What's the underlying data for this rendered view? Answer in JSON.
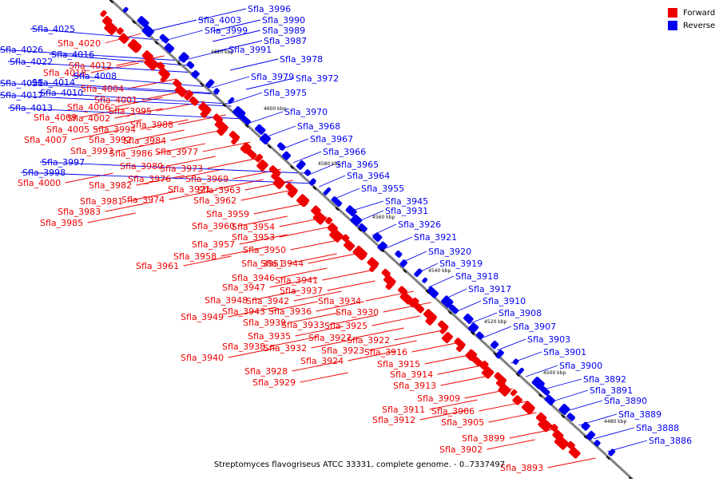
{
  "caption": "Streptomyces flavogriseus ATCC 33331, complete genome. - 0..7337497",
  "legend": [
    {
      "label": "Forward",
      "color": "#ee0000"
    },
    {
      "label": "Reverse",
      "color": "#0000ee"
    }
  ],
  "colors": {
    "forward": "#ee0000",
    "reverse": "#0000ee",
    "backbone": "#808080"
  },
  "scale_labels": [
    "4620 kbp",
    "4600 kbp",
    "4580 kbp",
    "4560 kbp",
    "4540 kbp",
    "4520 kbp",
    "4500 kbp",
    "4480 kbp"
  ],
  "forward_genes": [
    "Sfla_4020",
    "Sfla_4012",
    "Sfla_4018",
    "Sfla_4004",
    "Sfla_4001",
    "Sfla_4006",
    "Sfla_3995",
    "Sfla_4009",
    "Sfla_4002",
    "Sfla_4005",
    "Sfla_3994",
    "Sfla_3988",
    "Sfla_4007",
    "Sfla_3992",
    "Sfla_3984",
    "Sfla_3993",
    "Sfla_3986",
    "Sfla_3977",
    "Sfla_3980",
    "Sfla_3973",
    "Sfla_3976",
    "Sfla_3969",
    "Sfla_4000",
    "Sfla_3982",
    "Sfla_3971",
    "Sfla_3963",
    "Sfla_3981",
    "Sfla_3974",
    "Sfla_3962",
    "Sfla_3983",
    "Sfla_3959",
    "Sfla_3985",
    "Sfla_3960",
    "Sfla_3954",
    "Sfla_3953",
    "Sfla_3957",
    "Sfla_3950",
    "Sfla_3958",
    "Sfla_3951",
    "Sfla_3944",
    "Sfla_3961",
    "Sfla_3946",
    "Sfla_3941",
    "Sfla_3947",
    "Sfla_3937",
    "Sfla_3948",
    "Sfla_3942",
    "Sfla_3934",
    "Sfla_3943",
    "Sfla_3936",
    "Sfla_3930",
    "Sfla_3949",
    "Sfla_3939",
    "Sfla_3933",
    "Sfla_3925",
    "Sfla_3935",
    "Sfla_3927",
    "Sfla_3922",
    "Sfla_3938",
    "Sfla_3932",
    "Sfla_3923",
    "Sfla_3916",
    "Sfla_3940",
    "Sfla_3924",
    "Sfla_3915",
    "Sfla_3928",
    "Sfla_3914",
    "Sfla_3929",
    "Sfla_3913",
    "Sfla_3909",
    "Sfla_3911",
    "Sfla_3906",
    "Sfla_3912",
    "Sfla_3905",
    "Sfla_3899",
    "Sfla_3902",
    "Sfla_3893"
  ],
  "reverse_genes": [
    "Sfla_3996",
    "Sfla_4003",
    "Sfla_3990",
    "Sfla_3999",
    "Sfla_3989",
    "Sfla_4025",
    "Sfla_3987",
    "Sfla_4026",
    "Sfla_4016",
    "Sfla_3991",
    "Sfla_4022",
    "Sfla_3978",
    "Sfla_4008",
    "Sfla_3979",
    "Sfla_3972",
    "Sfla_4021",
    "Sfla_4014",
    "Sfla_4017",
    "Sfla_4010",
    "Sfla_3975",
    "Sfla_4013",
    "Sfla_3970",
    "Sfla_3968",
    "Sfla_3967",
    "Sfla_3966",
    "Sfla_3997",
    "Sfla_3965",
    "Sfla_3998",
    "Sfla_3964",
    "Sfla_3955",
    "Sfla_3945",
    "Sfla_3931",
    "Sfla_3926",
    "Sfla_3921",
    "Sfla_3920",
    "Sfla_3919",
    "Sfla_3918",
    "Sfla_3917",
    "Sfla_3910",
    "Sfla_3908",
    "Sfla_3907",
    "Sfla_3903",
    "Sfla_3901",
    "Sfla_3900",
    "Sfla_3892",
    "Sfla_3891",
    "Sfla_3890",
    "Sfla_3889",
    "Sfla_3888",
    "Sfla_3886"
  ]
}
